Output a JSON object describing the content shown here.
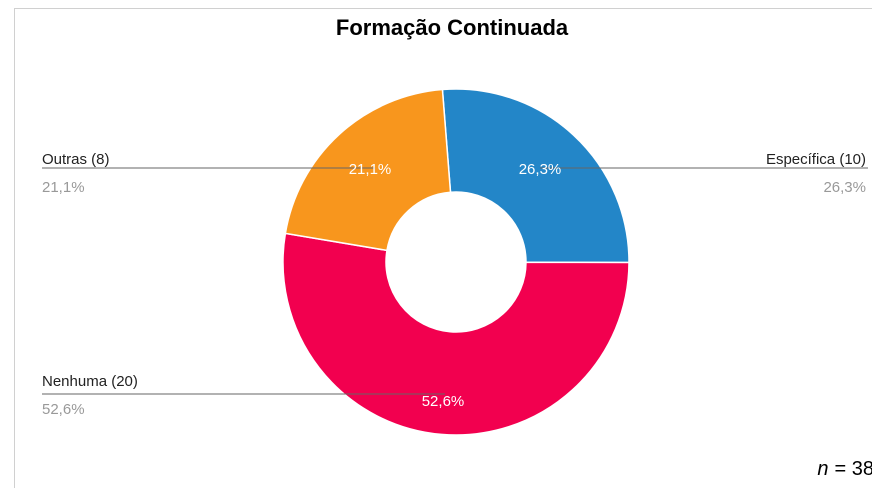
{
  "chart_data": {
    "type": "donut",
    "title": "Formação Continuada",
    "categories": [
      "Específica (10)",
      "Nenhuma (20)",
      "Outras (8)"
    ],
    "values": [
      26.3,
      52.6,
      21.1
    ],
    "value_labels": [
      "26,3%",
      "52,6%",
      "21,1%"
    ],
    "colors": [
      "#2386c8",
      "#f2004f",
      "#f8961d"
    ],
    "annotation": {
      "symbol": "n",
      "text": "= 38"
    }
  }
}
